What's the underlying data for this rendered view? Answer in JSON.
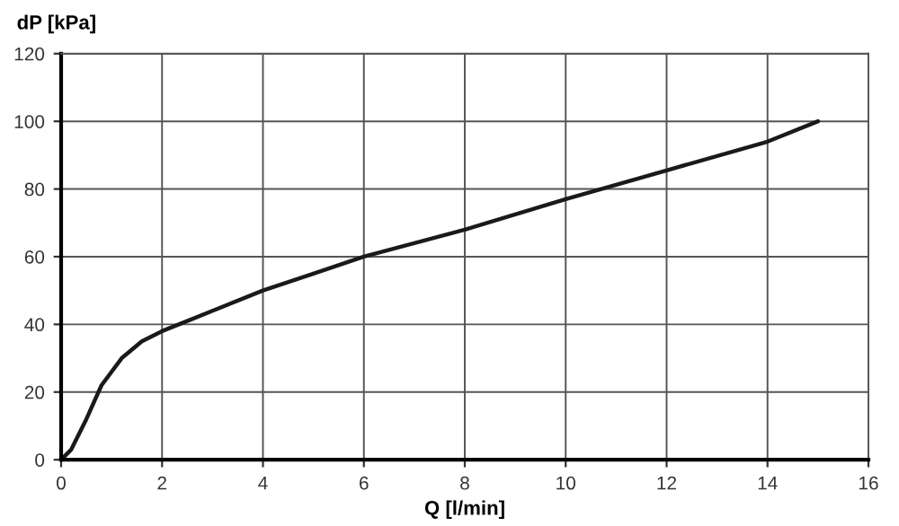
{
  "chart_data": {
    "type": "line",
    "xlabel": "Q [l/min]",
    "ylabel": "dP [kPa]",
    "series": [
      {
        "color": "#1a1a1a",
        "x": [
          0,
          0.2,
          0.5,
          0.8,
          1.2,
          1.6,
          2,
          2.5,
          3,
          4,
          5,
          6,
          8,
          10,
          12,
          14,
          15
        ],
        "values": [
          0,
          3,
          12,
          22,
          30,
          35,
          38,
          41,
          44,
          50,
          55,
          60,
          68,
          77,
          85.5,
          94,
          100
        ]
      }
    ],
    "xlim": [
      0,
      16
    ],
    "ylim": [
      0,
      120
    ],
    "xticks": [
      0,
      2,
      4,
      6,
      8,
      10,
      12,
      14,
      16
    ],
    "yticks": [
      0,
      20,
      40,
      60,
      80,
      100,
      120
    ],
    "grid": true,
    "line_style": "solid",
    "marker": "none"
  }
}
